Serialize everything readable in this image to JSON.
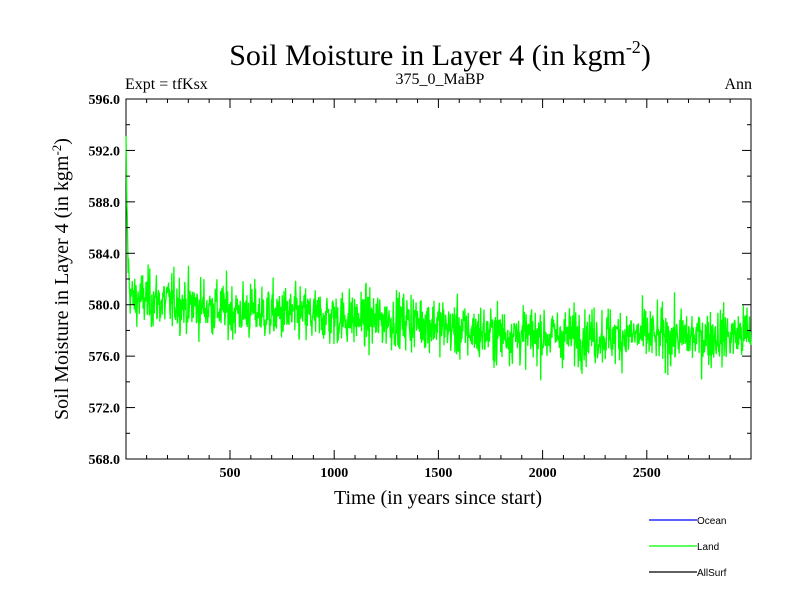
{
  "header": {
    "title_main": "Soil Moisture in Layer 4 (in kgm",
    "title_sup": "-2",
    "title_close": ")",
    "left": "Expt = tfKsx",
    "center": "375_0_MaBP",
    "right": "Ann"
  },
  "chart_data": {
    "type": "line",
    "xlabel": "Time (in years since start)",
    "ylabel_main": "Soil Moisture in Layer 4 (in kgm",
    "ylabel_sup": "-2",
    "ylabel_close": ")",
    "xlim": [
      1,
      3000
    ],
    "ylim": [
      568.0,
      596.0
    ],
    "x_ticks": [
      500,
      1000,
      1500,
      2000,
      2500
    ],
    "x_tick_labels": [
      "500",
      "1000",
      "1500",
      "2000",
      "2500"
    ],
    "y_ticks": [
      568.0,
      572.0,
      576.0,
      580.0,
      584.0,
      588.0,
      592.0,
      596.0
    ],
    "y_tick_labels": [
      "568.0",
      "572.0",
      "576.0",
      "580.0",
      "584.0",
      "588.0",
      "592.0",
      "596.0"
    ],
    "grid": false,
    "legend_position": "bottom-right, outside plot",
    "series": [
      {
        "name": "Ocean",
        "color": "#0000ff",
        "x": [],
        "y": []
      },
      {
        "name": "Land",
        "color": "#00ff00",
        "x": [
          1,
          10,
          20,
          30,
          40,
          50,
          75,
          100,
          150,
          200,
          250,
          300,
          350,
          400,
          450,
          500,
          550,
          600,
          650,
          700,
          750,
          800,
          850,
          900,
          950,
          1000,
          1050,
          1100,
          1150,
          1200,
          1250,
          1300,
          1350,
          1400,
          1450,
          1500,
          1550,
          1600,
          1650,
          1700,
          1750,
          1800,
          1850,
          1900,
          1950,
          2000,
          2050,
          2100,
          2150,
          2200,
          2250,
          2300,
          2350,
          2400,
          2450,
          2500,
          2550,
          2600,
          2650,
          2700,
          2750,
          2800,
          2850,
          2900,
          2950,
          3000
        ],
        "y": [
          592.0,
          583.5,
          581.0,
          580.6,
          580.3,
          580.5,
          580.4,
          580.5,
          580.3,
          580.2,
          580.2,
          580.0,
          579.9,
          579.8,
          579.7,
          579.6,
          579.5,
          579.5,
          579.4,
          579.3,
          579.3,
          579.2,
          579.2,
          579.1,
          579.1,
          579.0,
          579.0,
          578.9,
          578.9,
          578.8,
          578.8,
          578.8,
          578.8,
          578.7,
          578.6,
          578.5,
          578.2,
          578.0,
          577.9,
          577.8,
          577.8,
          577.7,
          577.7,
          577.6,
          577.6,
          577.6,
          577.6,
          577.6,
          577.6,
          577.6,
          577.6,
          577.6,
          577.6,
          577.6,
          577.6,
          577.6,
          577.5,
          577.5,
          577.5,
          577.5,
          577.5,
          577.5,
          577.6,
          577.6,
          577.6,
          577.8
        ]
      },
      {
        "name": "AllSurf",
        "color": "#000000",
        "x": [],
        "y": []
      }
    ]
  }
}
